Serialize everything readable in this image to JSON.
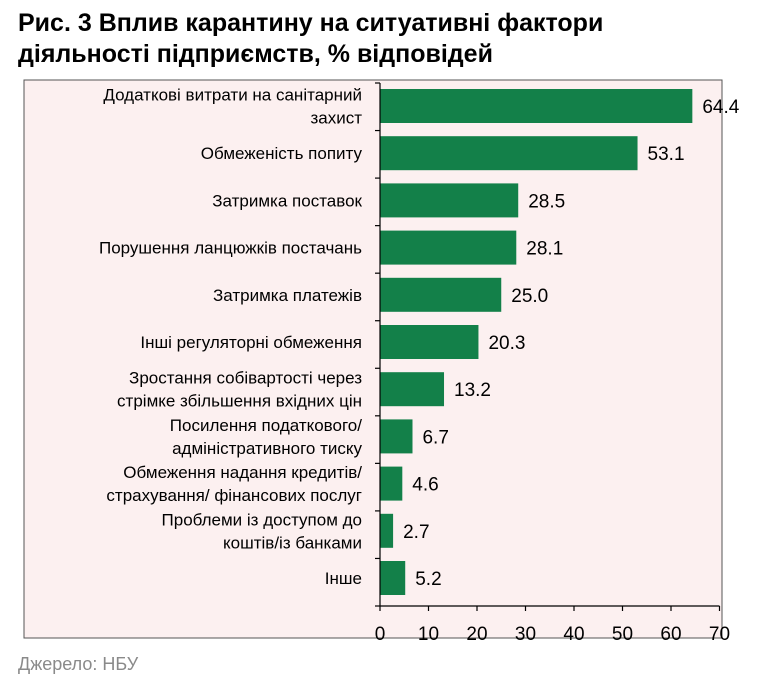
{
  "title_lines": [
    "Рис. 3 Вплив карантину на ситуативні фактори",
    "діяльності підприємств, % відповідей"
  ],
  "source": "Джерело: НБУ",
  "colors": {
    "bar": "#138049",
    "plot_bg": "#fcf0f0",
    "frame": "#555555",
    "axis": "#000000"
  },
  "chart_data": {
    "type": "bar",
    "orientation": "horizontal",
    "title": "Рис. 3 Вплив карантину на ситуативні фактори діяльності підприємств, % відповідей",
    "xlim": [
      0,
      70
    ],
    "xticks": [
      "0",
      "10",
      "20",
      "30",
      "40",
      "50",
      "60",
      "70"
    ],
    "grid": false,
    "categories": [
      [
        "Додаткові витрати на санітарний",
        "захист"
      ],
      [
        "Обмеженість попиту"
      ],
      [
        "Затримка поставок"
      ],
      [
        "Порушення ланцюжків постачань"
      ],
      [
        "Затримка платежів"
      ],
      [
        "Інші регуляторні обмеження"
      ],
      [
        "Зростання собівартості через",
        "стрімке збільшення вхідних цін"
      ],
      [
        "Посилення податкового/",
        "адміністративного тиску"
      ],
      [
        "Обмеження надання кредитів/",
        "страхування/ фінансових послуг"
      ],
      [
        "Проблеми із доступом до",
        "коштів/із банками"
      ],
      [
        "Інше"
      ]
    ],
    "values": [
      64.4,
      53.1,
      28.5,
      28.1,
      25.0,
      20.3,
      13.2,
      6.7,
      4.6,
      2.7,
      5.2
    ],
    "value_labels": [
      "64.4",
      "53.1",
      "28.5",
      "28.1",
      "25.0",
      "20.3",
      "13.2",
      "6.7",
      "4.6",
      "2.7",
      "5.2"
    ]
  }
}
